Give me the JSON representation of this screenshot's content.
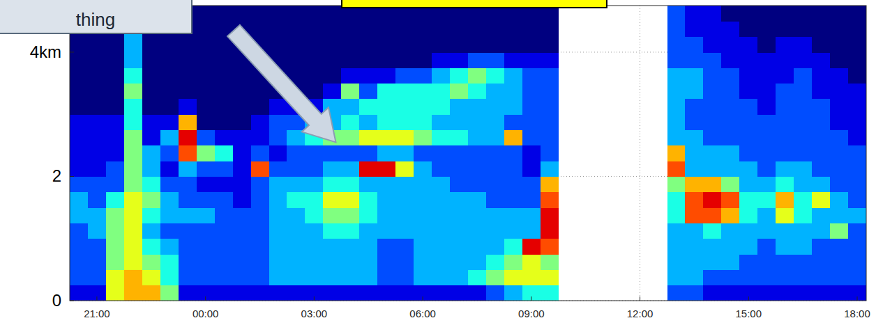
{
  "chart_data": {
    "type": "heatmap",
    "x_edges": [
      -3.75,
      -3.25,
      -2.75,
      -2.25,
      -1.75,
      -1.25,
      -0.75,
      -0.25,
      0.25,
      0.75,
      1.25,
      1.75,
      2.25,
      2.75,
      3.25,
      3.75,
      4.25,
      4.75,
      5.25,
      5.75,
      6.25,
      6.75,
      7.25,
      7.75,
      8.25,
      8.75,
      9.25,
      9.75,
      10.25,
      10.75,
      11.25,
      11.75,
      12.25,
      12.75,
      13.25,
      13.75,
      14.25,
      14.75,
      15.25,
      15.75,
      16.25,
      16.75,
      17.25,
      17.75,
      18.25
    ],
    "y_edges": [
      0,
      0.25,
      0.5,
      0.75,
      1,
      1.25,
      1.5,
      1.75,
      2,
      2.25,
      2.5,
      2.75,
      3,
      3.25,
      3.5,
      3.75,
      4,
      4.25,
      4.5,
      4.75
    ],
    "z": [
      [
        1,
        2,
        2,
        2,
        2,
        3,
        3,
        2,
        1,
        1,
        1,
        1,
        0,
        0,
        0,
        0,
        0,
        0,
        0
      ],
      [
        1,
        2,
        2,
        2,
        3,
        3,
        2,
        2,
        1,
        1,
        1,
        1,
        0,
        0,
        0,
        0,
        0,
        0,
        0
      ],
      [
        6,
        6,
        5,
        5,
        5,
        5,
        4,
        2,
        2,
        1,
        1,
        1,
        0,
        0,
        0,
        0,
        0,
        0,
        0
      ],
      [
        7,
        7,
        6,
        6,
        6,
        6,
        6,
        5,
        5,
        5,
        5,
        4,
        4,
        5,
        4,
        3,
        3,
        3,
        2
      ],
      [
        7,
        6,
        5,
        4,
        3,
        4,
        5,
        4,
        3,
        3,
        1,
        1,
        0,
        0,
        0,
        0,
        0,
        0,
        0
      ],
      [
        5,
        4,
        4,
        3,
        2,
        3,
        3,
        2,
        1,
        2,
        3,
        1,
        0,
        0,
        0,
        0,
        0,
        0,
        0
      ],
      [
        1,
        2,
        2,
        2,
        2,
        3,
        2,
        2,
        3,
        8,
        9,
        7,
        1,
        0,
        0,
        0,
        0,
        0,
        0
      ],
      [
        1,
        2,
        2,
        2,
        2,
        3,
        2,
        1,
        2,
        5,
        2,
        0,
        0,
        0,
        0,
        0,
        0,
        0,
        0
      ],
      [
        1,
        2,
        2,
        2,
        2,
        2,
        2,
        1,
        2,
        4,
        1,
        0,
        0,
        0,
        0,
        0,
        0,
        0,
        0
      ],
      [
        1,
        2,
        2,
        2,
        2,
        2,
        1,
        1,
        1,
        1,
        1,
        0,
        0,
        0,
        0,
        0,
        0,
        0,
        0
      ],
      [
        1,
        2,
        2,
        2,
        2,
        2,
        2,
        2,
        8,
        2,
        1,
        1,
        0,
        0,
        0,
        0,
        0,
        0,
        0
      ],
      [
        1,
        3,
        3,
        3,
        3,
        3,
        3,
        3,
        2,
        1,
        2,
        2,
        1,
        0,
        0,
        0,
        0,
        0,
        0
      ],
      [
        1,
        3,
        3,
        3,
        3,
        3,
        4,
        3,
        2,
        2,
        3,
        2,
        1,
        0,
        0,
        0,
        0,
        0,
        0
      ],
      [
        1,
        3,
        3,
        3,
        3,
        4,
        4,
        3,
        2,
        2,
        4,
        3,
        1,
        0,
        0,
        0,
        0,
        0,
        0
      ],
      [
        1,
        3,
        3,
        3,
        4,
        5,
        6,
        4,
        3,
        2,
        5,
        3,
        3,
        1,
        0,
        0,
        0,
        0,
        0
      ],
      [
        1,
        3,
        3,
        3,
        4,
        5,
        6,
        4,
        3,
        2,
        5,
        4,
        3,
        5,
        1,
        0,
        0,
        0,
        0
      ],
      [
        1,
        3,
        3,
        3,
        3,
        4,
        4,
        3,
        9,
        2,
        6,
        3,
        4,
        2,
        1,
        0,
        0,
        0,
        0
      ],
      [
        1,
        2,
        2,
        2,
        3,
        3,
        3,
        3,
        9,
        3,
        6,
        4,
        4,
        4,
        1,
        0,
        0,
        0,
        0
      ],
      [
        1,
        2,
        2,
        2,
        3,
        3,
        3,
        3,
        6,
        3,
        6,
        4,
        4,
        4,
        2,
        0,
        0,
        0,
        0
      ],
      [
        1,
        3,
        3,
        3,
        3,
        3,
        3,
        3,
        3,
        2,
        5,
        4,
        4,
        4,
        2,
        0,
        0,
        0,
        0
      ],
      [
        1,
        3,
        3,
        3,
        3,
        3,
        3,
        3,
        2,
        2,
        4,
        3,
        4,
        4,
        3,
        1,
        0,
        0,
        0
      ],
      [
        1,
        3,
        3,
        3,
        3,
        3,
        3,
        2,
        2,
        2,
        4,
        3,
        3,
        5,
        4,
        1,
        0,
        0,
        0
      ],
      [
        1,
        4,
        3,
        3,
        3,
        3,
        3,
        2,
        2,
        2,
        3,
        3,
        3,
        4,
        5,
        2,
        0,
        0,
        0
      ],
      [
        2,
        5,
        4,
        3,
        3,
        3,
        2,
        2,
        2,
        2,
        3,
        3,
        3,
        3,
        4,
        2,
        0,
        0,
        0
      ],
      [
        3,
        6,
        5,
        4,
        3,
        3,
        2,
        2,
        2,
        2,
        7,
        2,
        3,
        3,
        3,
        1,
        0,
        0,
        0
      ],
      [
        4,
        6,
        6,
        9,
        3,
        3,
        2,
        2,
        1,
        1,
        2,
        2,
        2,
        2,
        2,
        1,
        0,
        0,
        0
      ],
      [
        4,
        6,
        5,
        8,
        9,
        9,
        8,
        7,
        3,
        2,
        2,
        2,
        2,
        2,
        2,
        1,
        0,
        0,
        0
      ],
      null,
      null,
      null,
      null,
      null,
      null,
      [
        2,
        3,
        3,
        3,
        3,
        4,
        4,
        5,
        8,
        7,
        3,
        3,
        3,
        3,
        3,
        2,
        2,
        2,
        2
      ],
      [
        2,
        3,
        3,
        3,
        3,
        8,
        8,
        7,
        3,
        3,
        3,
        2,
        2,
        3,
        3,
        2,
        2,
        1,
        1
      ],
      [
        1,
        2,
        3,
        3,
        4,
        8,
        9,
        7,
        3,
        3,
        2,
        2,
        2,
        2,
        2,
        2,
        1,
        1,
        1
      ],
      [
        1,
        2,
        3,
        3,
        3,
        7,
        8,
        5,
        3,
        3,
        2,
        2,
        2,
        2,
        2,
        1,
        1,
        1,
        0
      ],
      [
        1,
        2,
        2,
        3,
        3,
        4,
        4,
        3,
        3,
        2,
        2,
        2,
        2,
        1,
        1,
        1,
        1,
        0,
        0
      ],
      [
        1,
        2,
        2,
        2,
        3,
        3,
        4,
        3,
        2,
        2,
        2,
        2,
        1,
        1,
        1,
        1,
        0,
        0,
        0
      ],
      [
        1,
        2,
        2,
        3,
        3,
        6,
        7,
        4,
        3,
        2,
        2,
        2,
        2,
        2,
        1,
        1,
        1,
        0,
        0
      ],
      [
        1,
        2,
        2,
        3,
        3,
        4,
        4,
        3,
        3,
        2,
        2,
        2,
        2,
        2,
        2,
        1,
        1,
        0,
        0
      ],
      [
        1,
        2,
        2,
        2,
        3,
        3,
        6,
        3,
        2,
        2,
        2,
        2,
        2,
        1,
        1,
        1,
        0,
        0,
        0
      ],
      [
        1,
        2,
        2,
        2,
        5,
        3,
        3,
        2,
        2,
        2,
        2,
        1,
        1,
        1,
        1,
        0,
        0,
        0,
        0
      ],
      [
        1,
        2,
        2,
        2,
        2,
        3,
        2,
        2,
        2,
        2,
        1,
        1,
        1,
        1,
        0,
        0,
        0,
        0,
        0
      ]
    ],
    "zlim": [
      0,
      10
    ],
    "xlim": [
      -3.75,
      18.25
    ],
    "ylim": [
      0,
      4.75
    ],
    "xticks": [
      {
        "value": -3,
        "label": "21:00"
      },
      {
        "value": 0,
        "label": "00:00"
      },
      {
        "value": 3,
        "label": "03:00"
      },
      {
        "value": 6,
        "label": "06:00"
      },
      {
        "value": 9,
        "label": "09:00"
      },
      {
        "value": 12,
        "label": "12:00"
      },
      {
        "value": 15,
        "label": "15:00"
      },
      {
        "value": 18,
        "label": "18:00"
      }
    ],
    "yticks": [
      0,
      2,
      {
        "value": 4,
        "label": "4km"
      }
    ],
    "grid": true,
    "annotations": [
      {
        "text": "thing",
        "x": 3.6,
        "y": 2.55
      }
    ]
  }
}
